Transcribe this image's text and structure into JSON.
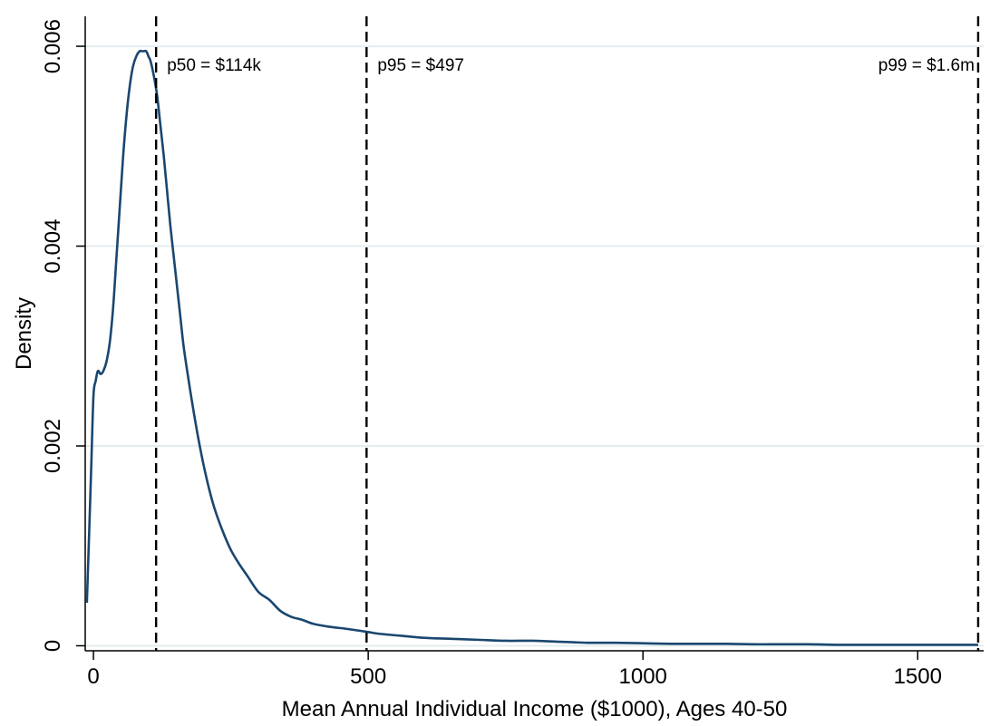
{
  "chart_data": {
    "type": "line",
    "title": "",
    "xlabel": "Mean Annual Individual Income ($1000), Ages 40-50",
    "ylabel": "Density",
    "xlim": [
      -15,
      1620
    ],
    "ylim": [
      -5e-05,
      0.0063
    ],
    "x_ticks": [
      {
        "value": 0,
        "label": "0"
      },
      {
        "value": 500,
        "label": "500"
      },
      {
        "value": 1000,
        "label": "1000"
      },
      {
        "value": 1500,
        "label": "1500"
      }
    ],
    "y_ticks": [
      {
        "value": 0,
        "label": "0"
      },
      {
        "value": 0.002,
        "label": "0.002"
      },
      {
        "value": 0.004,
        "label": "0.004"
      },
      {
        "value": 0.006,
        "label": "0.006"
      }
    ],
    "grid": "horizontal",
    "legend": "none",
    "line_color": "#1a476f",
    "reference_lines": [
      {
        "x": 114,
        "label": "p50 = $114k"
      },
      {
        "x": 497,
        "label": "p95 = $497"
      },
      {
        "x": 1610,
        "label": "p99 = $1.6m"
      }
    ],
    "series": [
      {
        "x": [
          -12,
          -8,
          -4,
          0,
          4,
          8,
          13,
          18,
          24,
          30,
          36,
          42,
          48,
          54,
          60,
          66,
          72,
          78,
          84,
          90,
          96,
          100,
          104,
          110,
          116,
          122,
          128,
          134,
          140,
          146,
          152,
          158,
          164,
          172,
          180,
          190,
          200,
          210,
          220,
          235,
          250,
          265,
          280,
          300,
          320,
          340,
          360,
          380,
          400,
          430,
          460,
          497,
          520,
          560,
          600,
          650,
          700,
          750,
          800,
          850,
          900,
          950,
          1000,
          1050,
          1100,
          1150,
          1200,
          1250,
          1300,
          1350,
          1400,
          1450,
          1500,
          1550,
          1610
        ],
        "y": [
          0.00043,
          0.0011,
          0.0018,
          0.0025,
          0.00265,
          0.00275,
          0.00272,
          0.00275,
          0.00285,
          0.00305,
          0.0034,
          0.0039,
          0.0044,
          0.0049,
          0.0053,
          0.0056,
          0.0058,
          0.0059,
          0.00595,
          0.00595,
          0.00595,
          0.0059,
          0.00585,
          0.0057,
          0.0055,
          0.0052,
          0.0049,
          0.00455,
          0.0042,
          0.0039,
          0.0036,
          0.0033,
          0.003,
          0.0027,
          0.00242,
          0.0021,
          0.00182,
          0.00158,
          0.00138,
          0.00115,
          0.00096,
          0.00082,
          0.0007,
          0.00054,
          0.00046,
          0.00035,
          0.00029,
          0.00026,
          0.00022,
          0.00019,
          0.00017,
          0.00014,
          0.00012,
          0.0001,
          8e-05,
          7e-05,
          6e-05,
          5e-05,
          5e-05,
          4e-05,
          3e-05,
          3e-05,
          2.5e-05,
          2e-05,
          2e-05,
          2e-05,
          1.5e-05,
          1.5e-05,
          1.5e-05,
          1e-05,
          1e-05,
          1e-05,
          1e-05,
          1e-05,
          1e-05
        ]
      }
    ]
  }
}
